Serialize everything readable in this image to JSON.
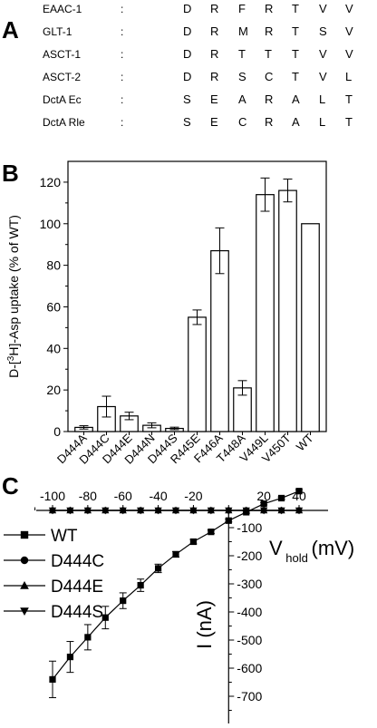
{
  "panels": {
    "a": {
      "letter": "A"
    },
    "b": {
      "letter": "B"
    },
    "c": {
      "letter": "C"
    }
  },
  "alignment": {
    "separator": ":",
    "rows": [
      {
        "name": "EAAC-1",
        "residues": [
          "D",
          "R",
          "F",
          "R",
          "T",
          "V",
          "V"
        ]
      },
      {
        "name": "GLT-1",
        "residues": [
          "D",
          "R",
          "M",
          "R",
          "T",
          "S",
          "V"
        ]
      },
      {
        "name": "ASCT-1",
        "residues": [
          "D",
          "R",
          "T",
          "T",
          "T",
          "V",
          "V"
        ]
      },
      {
        "name": "ASCT-2",
        "residues": [
          "D",
          "R",
          "S",
          "C",
          "T",
          "V",
          "L"
        ]
      },
      {
        "name": "DctA Ec",
        "residues": [
          "S",
          "E",
          "A",
          "R",
          "A",
          "L",
          "T"
        ]
      },
      {
        "name": "DctA Rle",
        "residues": [
          "S",
          "E",
          "C",
          "R",
          "A",
          "L",
          "T"
        ]
      }
    ]
  },
  "chart_data": [
    {
      "type": "bar",
      "ylabel": "D-[3H]-Asp uptake (% of WT)",
      "ylim": [
        0,
        130
      ],
      "yticks": [
        0,
        20,
        40,
        60,
        80,
        100,
        120
      ],
      "categories": [
        "D444A",
        "D444C",
        "D444E",
        "D444N",
        "D444S",
        "R445E",
        "F446A",
        "T448A",
        "V449L",
        "V450T",
        "WT"
      ],
      "values": [
        2,
        12,
        7.5,
        3,
        1.5,
        55,
        87,
        21,
        114,
        116,
        100
      ],
      "errors": [
        0.8,
        5,
        1.8,
        1.2,
        0.6,
        3.5,
        11,
        3.5,
        8,
        5.5,
        0
      ]
    },
    {
      "type": "line",
      "xlabel": "V",
      "xlabel_sub": "hold",
      "xlabel_unit": "(mV)",
      "ylabel": "I (nA)",
      "xlim": [
        -110,
        45
      ],
      "ylim": [
        -720,
        20
      ],
      "xticks": [
        -100,
        -80,
        -60,
        -40,
        -20,
        0,
        20,
        40
      ],
      "xticks_labeled": [
        -100,
        -80,
        -60,
        -40,
        -20,
        20,
        40
      ],
      "yticks": [
        -700,
        -600,
        -500,
        -400,
        -300,
        -200,
        -100
      ],
      "legend_position": "left",
      "series": [
        {
          "name": "WT",
          "marker": "square",
          "x": [
            -100,
            -90,
            -80,
            -70,
            -60,
            -50,
            -40,
            -30,
            -20,
            -10,
            0,
            10,
            20,
            30,
            40
          ],
          "y": [
            -640,
            -560,
            -490,
            -420,
            -360,
            -305,
            -245,
            -195,
            -150,
            -115,
            -75,
            -45,
            -15,
            5,
            30
          ],
          "err": [
            65,
            55,
            45,
            40,
            28,
            22,
            15,
            10,
            8,
            6,
            5,
            4,
            4,
            4,
            5
          ]
        },
        {
          "name": "D444C",
          "marker": "circle",
          "x": [
            -100,
            -90,
            -80,
            -70,
            -60,
            -50,
            -40,
            -30,
            -20,
            -10,
            0,
            10,
            20,
            30,
            40
          ],
          "y": [
            0,
            0,
            0,
            0,
            0,
            0,
            0,
            0,
            0,
            0,
            0,
            0,
            0,
            0,
            0
          ]
        },
        {
          "name": "D444E",
          "marker": "triangle-up",
          "x": [
            -100,
            -90,
            -80,
            -70,
            -60,
            -50,
            -40,
            -30,
            -20,
            -10,
            0,
            10,
            20,
            30,
            40
          ],
          "y": [
            0,
            0,
            0,
            0,
            0,
            0,
            0,
            0,
            0,
            0,
            0,
            0,
            0,
            0,
            0
          ]
        },
        {
          "name": "D444S",
          "marker": "triangle-down",
          "x": [
            -100,
            -90,
            -80,
            -70,
            -60,
            -50,
            -40,
            -30,
            -20,
            -10,
            0,
            10,
            20,
            30,
            40
          ],
          "y": [
            0,
            0,
            0,
            0,
            0,
            0,
            0,
            0,
            0,
            0,
            0,
            0,
            0,
            0,
            0
          ]
        }
      ]
    }
  ]
}
